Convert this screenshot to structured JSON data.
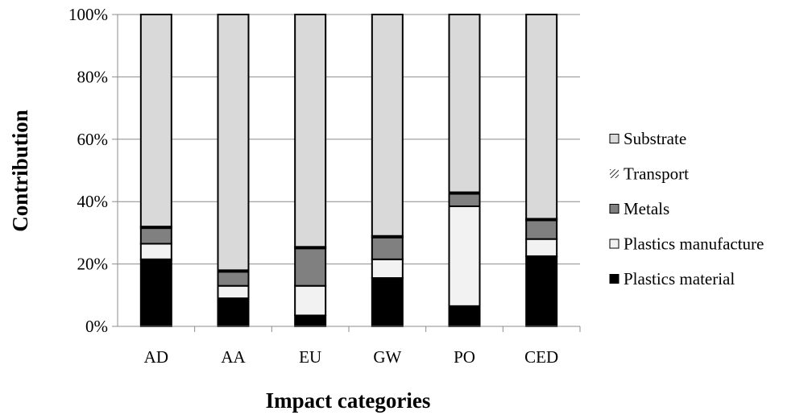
{
  "chart_data": {
    "type": "bar",
    "stacked": true,
    "percent_stacked": true,
    "title": "",
    "xlabel": "Impact categories",
    "ylabel": "Contribution",
    "ylim": [
      0,
      100
    ],
    "yticks": [
      "0%",
      "20%",
      "40%",
      "60%",
      "80%",
      "100%"
    ],
    "grid": true,
    "legend_position": "right",
    "categories": [
      "AD",
      "AA",
      "EU",
      "GW",
      "PO",
      "CED"
    ],
    "series": [
      {
        "name": "Plastics material",
        "color": "#000000",
        "pattern": "solid",
        "values": [
          21.5,
          9,
          3.5,
          15.5,
          6.5,
          22.5
        ]
      },
      {
        "name": "Plastics manufacture",
        "color": "#f2f2f2",
        "pattern": "solid",
        "values": [
          5,
          4,
          9.5,
          6,
          32,
          5.5
        ]
      },
      {
        "name": "Metals",
        "color": "#808080",
        "pattern": "solid",
        "values": [
          5,
          4.5,
          12,
          7,
          4,
          6
        ]
      },
      {
        "name": "Transport",
        "color": "#ffffff",
        "pattern": "diagonal-hatch",
        "values": [
          0.5,
          0.5,
          0.5,
          0.5,
          0.5,
          0.5
        ]
      },
      {
        "name": "Substrate",
        "color": "#d9d9d9",
        "pattern": "solid",
        "values": [
          68,
          82,
          74.5,
          71,
          57,
          65.5
        ]
      }
    ],
    "legend_order": [
      "Substrate",
      "Transport",
      "Metals",
      "Plastics manufacture",
      "Plastics material"
    ]
  }
}
